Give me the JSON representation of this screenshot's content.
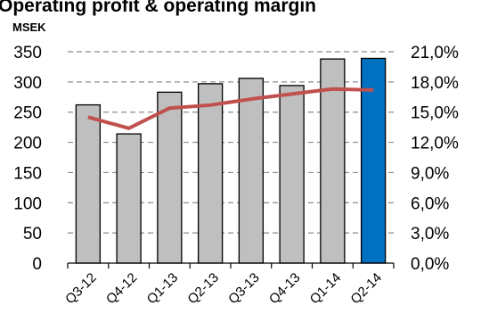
{
  "chart_data": {
    "type": "bar",
    "title": "Operating profit & operating margin",
    "unit_label": "MSEK",
    "categories": [
      "Q3-12",
      "Q4-12",
      "Q1-13",
      "Q2-13",
      "Q3-13",
      "Q4-13",
      "Q1-14",
      "Q2-14"
    ],
    "series": [
      {
        "type": "bar",
        "axis": "left",
        "values": [
          262,
          214,
          283,
          297,
          306,
          294,
          338,
          339
        ],
        "color": "#bfbfbf",
        "highlight_color": "#0070c0",
        "highlight_index": 7
      },
      {
        "type": "line",
        "axis": "right",
        "values": [
          14.5,
          13.4,
          15.4,
          15.7,
          16.3,
          16.8,
          17.3,
          17.2
        ],
        "color": "#c0504d"
      }
    ],
    "y_left": {
      "min": 0,
      "max": 350,
      "step": 50,
      "ticks": [
        "0",
        "50",
        "100",
        "150",
        "200",
        "250",
        "300",
        "350"
      ]
    },
    "y_right": {
      "min": 0,
      "max": 21,
      "step": 3,
      "ticks": [
        "0,0%",
        "3,0%",
        "6,0%",
        "9,0%",
        "12,0%",
        "15,0%",
        "18,0%",
        "21,0%"
      ]
    },
    "grid": true,
    "grid_style": "dashed",
    "legend": "none"
  }
}
